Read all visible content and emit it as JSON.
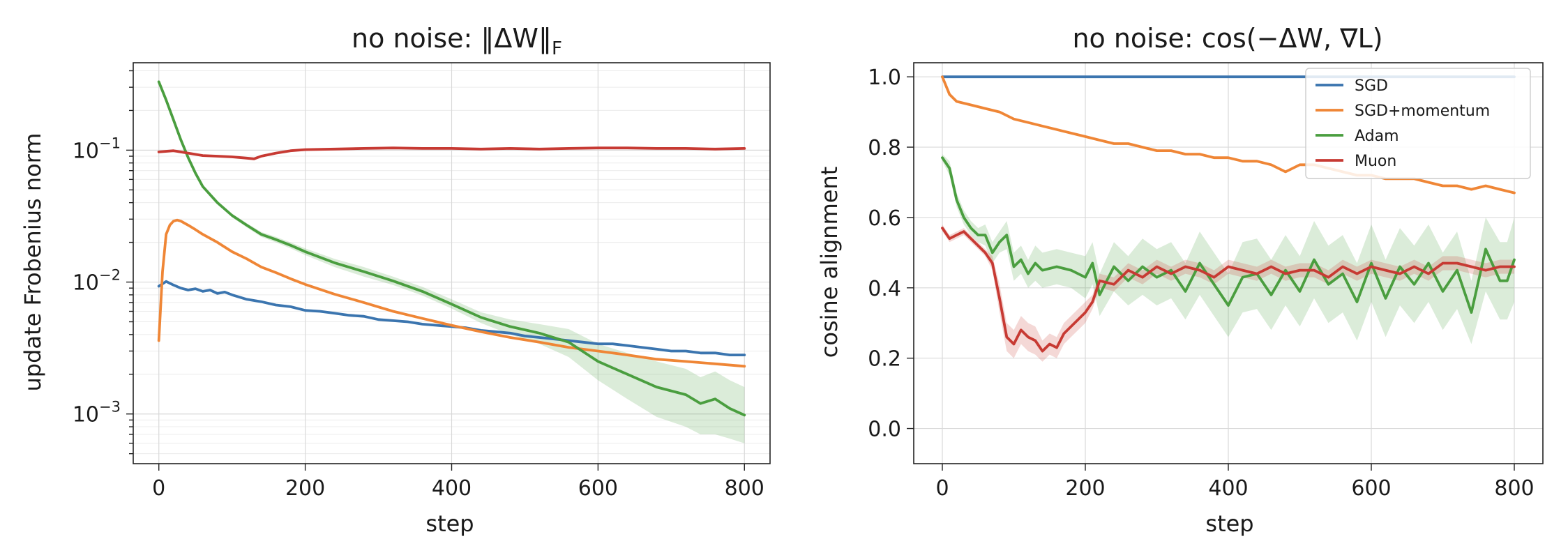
{
  "chart_data": [
    {
      "type": "line",
      "title_prefix": "no noise: ",
      "title_math": "‖ΔW‖",
      "title_sub": "F",
      "xlabel": "step",
      "ylabel": "update Frobenius norm",
      "yscale": "log",
      "xlim": [
        -35,
        835
      ],
      "ylim": [
        0.00042,
        0.46
      ],
      "xticks": [
        0,
        200,
        400,
        600,
        800
      ],
      "yticks": [
        {
          "base": "10",
          "exp": "−1",
          "value": 0.1
        },
        {
          "base": "10",
          "exp": "−2",
          "value": 0.01
        },
        {
          "base": "10",
          "exp": "−3",
          "value": 0.001
        }
      ],
      "grid": true,
      "series": [
        {
          "name": "SGD",
          "color": "#3b75af",
          "x": [
            0,
            10,
            20,
            30,
            40,
            50,
            60,
            70,
            80,
            90,
            100,
            120,
            140,
            160,
            180,
            200,
            220,
            240,
            260,
            280,
            300,
            320,
            340,
            360,
            380,
            400,
            420,
            440,
            460,
            480,
            500,
            520,
            540,
            560,
            580,
            600,
            620,
            640,
            660,
            680,
            700,
            720,
            740,
            760,
            780,
            800
          ],
          "y": [
            0.0093,
            0.0101,
            0.0095,
            0.009,
            0.0087,
            0.0089,
            0.0085,
            0.0087,
            0.0082,
            0.0084,
            0.008,
            0.0074,
            0.0071,
            0.0067,
            0.0065,
            0.0061,
            0.006,
            0.0058,
            0.0056,
            0.0055,
            0.0052,
            0.0051,
            0.005,
            0.0048,
            0.0047,
            0.0046,
            0.0045,
            0.0043,
            0.0042,
            0.0041,
            0.0039,
            0.0038,
            0.0037,
            0.0036,
            0.0035,
            0.0034,
            0.0034,
            0.0033,
            0.0032,
            0.0031,
            0.003,
            0.003,
            0.0029,
            0.0029,
            0.0028,
            0.0028
          ]
        },
        {
          "name": "SGD+momentum",
          "color": "#ef8636",
          "x": [
            0,
            5,
            10,
            15,
            20,
            25,
            30,
            40,
            50,
            60,
            80,
            100,
            120,
            140,
            160,
            180,
            200,
            240,
            280,
            320,
            360,
            400,
            440,
            480,
            520,
            560,
            600,
            640,
            680,
            720,
            760,
            800
          ],
          "y": [
            0.0036,
            0.012,
            0.023,
            0.027,
            0.029,
            0.0295,
            0.029,
            0.027,
            0.025,
            0.023,
            0.02,
            0.017,
            0.015,
            0.013,
            0.0118,
            0.0106,
            0.0096,
            0.0081,
            0.007,
            0.006,
            0.0053,
            0.0047,
            0.0042,
            0.0038,
            0.0035,
            0.0032,
            0.003,
            0.0028,
            0.0026,
            0.0025,
            0.0024,
            0.0023
          ]
        },
        {
          "name": "Adam",
          "color": "#4a9e3f",
          "x": [
            0,
            10,
            20,
            30,
            40,
            50,
            60,
            80,
            100,
            120,
            140,
            160,
            180,
            200,
            240,
            280,
            320,
            360,
            400,
            440,
            480,
            520,
            560,
            600,
            640,
            680,
            720,
            740,
            760,
            780,
            800
          ],
          "y": [
            0.33,
            0.24,
            0.17,
            0.12,
            0.088,
            0.067,
            0.053,
            0.04,
            0.032,
            0.027,
            0.023,
            0.021,
            0.019,
            0.017,
            0.014,
            0.012,
            0.0102,
            0.0085,
            0.0068,
            0.0054,
            0.0046,
            0.0041,
            0.0035,
            0.0025,
            0.002,
            0.0016,
            0.0014,
            0.0012,
            0.0013,
            0.0011,
            0.00098
          ],
          "band_lower": [
            0.32,
            0.235,
            0.165,
            0.117,
            0.086,
            0.066,
            0.052,
            0.039,
            0.031,
            0.026,
            0.022,
            0.02,
            0.018,
            0.016,
            0.013,
            0.011,
            0.0095,
            0.0079,
            0.0063,
            0.0049,
            0.004,
            0.0034,
            0.0027,
            0.0018,
            0.0013,
            0.00095,
            0.0008,
            0.0007,
            0.0007,
            0.00065,
            0.0006
          ],
          "band_upper": [
            0.34,
            0.245,
            0.175,
            0.123,
            0.09,
            0.068,
            0.054,
            0.041,
            0.033,
            0.028,
            0.024,
            0.022,
            0.02,
            0.018,
            0.015,
            0.013,
            0.011,
            0.0092,
            0.0074,
            0.0059,
            0.0052,
            0.0048,
            0.0044,
            0.0034,
            0.0029,
            0.0025,
            0.0022,
            0.0019,
            0.0021,
            0.0018,
            0.0016
          ]
        },
        {
          "name": "Muon",
          "color": "#c73a33",
          "x": [
            0,
            20,
            40,
            60,
            80,
            100,
            120,
            130,
            140,
            160,
            180,
            200,
            240,
            280,
            320,
            360,
            400,
            440,
            480,
            520,
            560,
            600,
            640,
            680,
            720,
            760,
            800
          ],
          "y": [
            0.097,
            0.099,
            0.095,
            0.091,
            0.09,
            0.089,
            0.087,
            0.086,
            0.09,
            0.095,
            0.099,
            0.101,
            0.102,
            0.103,
            0.104,
            0.103,
            0.103,
            0.102,
            0.103,
            0.102,
            0.103,
            0.104,
            0.104,
            0.103,
            0.103,
            0.102,
            0.103
          ]
        }
      ]
    },
    {
      "type": "line",
      "title_prefix": "no noise: ",
      "title_math": "cos(−ΔW, ∇L)",
      "xlabel": "step",
      "ylabel": "cosine alignment",
      "yscale": "linear",
      "xlim": [
        -40,
        840
      ],
      "ylim": [
        -0.1,
        1.04
      ],
      "xticks": [
        0,
        200,
        400,
        600,
        800
      ],
      "yticks": [
        0.0,
        0.2,
        0.4,
        0.6,
        0.8,
        1.0
      ],
      "grid": true,
      "legend": {
        "position": "top-right",
        "entries": [
          "SGD",
          "SGD+momentum",
          "Adam",
          "Muon"
        ]
      },
      "series": [
        {
          "name": "SGD",
          "color": "#3b75af",
          "x": [
            0,
            800
          ],
          "y": [
            1.0,
            1.0
          ]
        },
        {
          "name": "SGD+momentum",
          "color": "#ef8636",
          "x": [
            0,
            10,
            20,
            40,
            60,
            80,
            100,
            120,
            140,
            160,
            180,
            200,
            220,
            240,
            260,
            280,
            300,
            320,
            340,
            360,
            380,
            400,
            420,
            440,
            460,
            480,
            500,
            520,
            540,
            560,
            580,
            600,
            620,
            640,
            660,
            680,
            700,
            720,
            740,
            760,
            780,
            800
          ],
          "y": [
            1.0,
            0.95,
            0.93,
            0.92,
            0.91,
            0.9,
            0.88,
            0.87,
            0.86,
            0.85,
            0.84,
            0.83,
            0.82,
            0.81,
            0.81,
            0.8,
            0.79,
            0.79,
            0.78,
            0.78,
            0.77,
            0.77,
            0.76,
            0.76,
            0.75,
            0.73,
            0.75,
            0.75,
            0.74,
            0.73,
            0.72,
            0.72,
            0.71,
            0.71,
            0.71,
            0.7,
            0.69,
            0.69,
            0.68,
            0.69,
            0.68,
            0.67
          ]
        },
        {
          "name": "Adam",
          "color": "#4a9e3f",
          "x": [
            0,
            10,
            20,
            30,
            40,
            50,
            60,
            70,
            80,
            90,
            100,
            110,
            120,
            130,
            140,
            160,
            180,
            200,
            210,
            220,
            240,
            260,
            280,
            300,
            320,
            340,
            360,
            380,
            400,
            420,
            440,
            460,
            480,
            500,
            520,
            540,
            560,
            580,
            600,
            620,
            640,
            660,
            680,
            700,
            720,
            740,
            760,
            780,
            790,
            800
          ],
          "y": [
            0.77,
            0.74,
            0.65,
            0.6,
            0.57,
            0.55,
            0.55,
            0.5,
            0.53,
            0.55,
            0.46,
            0.48,
            0.44,
            0.47,
            0.45,
            0.46,
            0.45,
            0.43,
            0.47,
            0.38,
            0.46,
            0.42,
            0.46,
            0.43,
            0.45,
            0.39,
            0.47,
            0.41,
            0.35,
            0.43,
            0.44,
            0.38,
            0.45,
            0.39,
            0.48,
            0.41,
            0.44,
            0.36,
            0.47,
            0.37,
            0.46,
            0.41,
            0.47,
            0.39,
            0.45,
            0.33,
            0.51,
            0.42,
            0.42,
            0.48
          ],
          "band_lower": [
            0.76,
            0.72,
            0.63,
            0.58,
            0.55,
            0.53,
            0.52,
            0.47,
            0.5,
            0.51,
            0.42,
            0.44,
            0.4,
            0.42,
            0.4,
            0.41,
            0.4,
            0.37,
            0.41,
            0.32,
            0.39,
            0.35,
            0.38,
            0.35,
            0.37,
            0.31,
            0.38,
            0.32,
            0.26,
            0.33,
            0.34,
            0.28,
            0.35,
            0.29,
            0.37,
            0.3,
            0.33,
            0.25,
            0.36,
            0.26,
            0.35,
            0.3,
            0.36,
            0.28,
            0.34,
            0.24,
            0.39,
            0.31,
            0.31,
            0.36
          ],
          "band_upper": [
            0.78,
            0.76,
            0.67,
            0.62,
            0.59,
            0.57,
            0.58,
            0.53,
            0.56,
            0.59,
            0.5,
            0.52,
            0.48,
            0.52,
            0.5,
            0.51,
            0.5,
            0.49,
            0.53,
            0.44,
            0.53,
            0.49,
            0.54,
            0.51,
            0.53,
            0.47,
            0.56,
            0.5,
            0.44,
            0.53,
            0.54,
            0.48,
            0.55,
            0.49,
            0.59,
            0.52,
            0.55,
            0.47,
            0.58,
            0.48,
            0.57,
            0.52,
            0.58,
            0.5,
            0.56,
            0.42,
            0.6,
            0.53,
            0.53,
            0.6
          ]
        },
        {
          "name": "Muon",
          "color": "#c73a33",
          "x": [
            0,
            10,
            20,
            30,
            40,
            50,
            60,
            70,
            80,
            90,
            100,
            110,
            120,
            130,
            140,
            150,
            160,
            170,
            180,
            190,
            200,
            210,
            220,
            240,
            260,
            280,
            300,
            320,
            340,
            360,
            380,
            400,
            420,
            440,
            460,
            480,
            500,
            520,
            540,
            560,
            580,
            600,
            620,
            640,
            660,
            680,
            700,
            720,
            740,
            760,
            780,
            800
          ],
          "y": [
            0.57,
            0.54,
            0.55,
            0.56,
            0.54,
            0.52,
            0.5,
            0.47,
            0.37,
            0.26,
            0.24,
            0.28,
            0.26,
            0.25,
            0.22,
            0.24,
            0.23,
            0.27,
            0.29,
            0.31,
            0.33,
            0.36,
            0.42,
            0.41,
            0.45,
            0.43,
            0.46,
            0.44,
            0.46,
            0.45,
            0.43,
            0.46,
            0.45,
            0.44,
            0.46,
            0.44,
            0.45,
            0.45,
            0.43,
            0.46,
            0.44,
            0.46,
            0.45,
            0.44,
            0.46,
            0.44,
            0.47,
            0.47,
            0.46,
            0.45,
            0.46,
            0.46
          ],
          "band_lower": [
            0.56,
            0.53,
            0.54,
            0.55,
            0.53,
            0.51,
            0.49,
            0.45,
            0.33,
            0.22,
            0.2,
            0.24,
            0.22,
            0.21,
            0.19,
            0.21,
            0.2,
            0.24,
            0.26,
            0.28,
            0.3,
            0.34,
            0.4,
            0.39,
            0.43,
            0.41,
            0.44,
            0.42,
            0.44,
            0.43,
            0.41,
            0.44,
            0.43,
            0.42,
            0.44,
            0.42,
            0.43,
            0.43,
            0.41,
            0.44,
            0.42,
            0.44,
            0.43,
            0.42,
            0.44,
            0.42,
            0.45,
            0.45,
            0.44,
            0.43,
            0.44,
            0.44
          ],
          "band_upper": [
            0.58,
            0.55,
            0.56,
            0.57,
            0.55,
            0.53,
            0.51,
            0.49,
            0.41,
            0.3,
            0.28,
            0.32,
            0.3,
            0.29,
            0.25,
            0.27,
            0.26,
            0.3,
            0.32,
            0.34,
            0.36,
            0.38,
            0.44,
            0.43,
            0.47,
            0.45,
            0.48,
            0.46,
            0.48,
            0.47,
            0.45,
            0.48,
            0.47,
            0.46,
            0.48,
            0.46,
            0.47,
            0.47,
            0.45,
            0.48,
            0.46,
            0.48,
            0.47,
            0.46,
            0.48,
            0.46,
            0.49,
            0.49,
            0.48,
            0.47,
            0.48,
            0.48
          ]
        }
      ]
    }
  ]
}
